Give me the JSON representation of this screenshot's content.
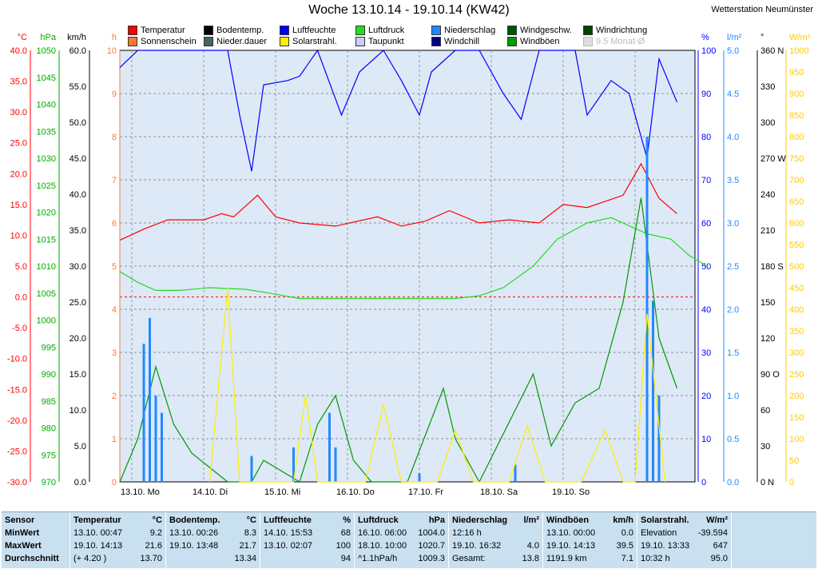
{
  "header": {
    "title": "Woche 13.10.14 - 19.10.14 (KW42)",
    "station": "Wetterstation Neumünster"
  },
  "legend": [
    {
      "label": "Temperatur",
      "color": "#ff0000"
    },
    {
      "label": "Bodentemp.",
      "color": "#000000"
    },
    {
      "label": "Luftfeuchte",
      "color": "#0000ff"
    },
    {
      "label": "Luftdruck",
      "color": "#22dd22"
    },
    {
      "label": "Niederschlag",
      "color": "#2288ff"
    },
    {
      "label": "Windgeschw.",
      "color": "#005500"
    },
    {
      "label": "Windrichtung",
      "color": "#004400"
    },
    {
      "label": "Sonnenschein",
      "color": "#ff7733"
    },
    {
      "label": "Nieder.dauer",
      "color": "#446666"
    },
    {
      "label": "Solarstrahl.",
      "color": "#ffee00"
    },
    {
      "label": "Taupunkt",
      "color": "#ccccff"
    },
    {
      "label": "Windchill",
      "color": "#000088"
    },
    {
      "label": "Windböen",
      "color": "#009900"
    },
    {
      "label": "9.5 Monat-Ø",
      "color": "#dddddd"
    }
  ],
  "axes": {
    "temp": {
      "unit": "°C",
      "color": "#ff0000",
      "ticks": [
        "40.0",
        "35.0",
        "30.0",
        "25.0",
        "20.0",
        "15.0",
        "10.0",
        "5.0",
        "0.0",
        "-5.0",
        "-10.0",
        "-15.0",
        "-20.0",
        "-25.0",
        "-30.0"
      ]
    },
    "pressure": {
      "unit": "hPa",
      "color": "#00aa00",
      "ticks": [
        "1050",
        "1045",
        "1040",
        "1035",
        "1030",
        "1025",
        "1020",
        "1015",
        "1010",
        "1005",
        "1000",
        "995",
        "990",
        "985",
        "980",
        "975",
        "970"
      ]
    },
    "wind": {
      "unit": "km/h",
      "color": "#000000",
      "ticks": [
        "60.0",
        "55.0",
        "50.0",
        "45.0",
        "40.0",
        "35.0",
        "30.0",
        "25.0",
        "20.0",
        "15.0",
        "10.0",
        "5.0",
        "0.0"
      ]
    },
    "hours": {
      "unit": "h",
      "color": "#ff7733",
      "ticks": [
        "10",
        "9",
        "8",
        "7",
        "6",
        "5",
        "4",
        "3",
        "2",
        "1",
        "0"
      ]
    },
    "humidity": {
      "unit": "%",
      "color": "#0000ff",
      "ticks": [
        "100",
        "90",
        "80",
        "70",
        "60",
        "50",
        "40",
        "30",
        "20",
        "10",
        "0"
      ]
    },
    "rain": {
      "unit": "l/m²",
      "color": "#2288ff",
      "ticks": [
        "5.0",
        "4.5",
        "4.0",
        "3.5",
        "3.0",
        "2.5",
        "2.0",
        "1.5",
        "1.0",
        "0.5",
        "0.0"
      ]
    },
    "direction": {
      "unit": "°",
      "color": "#000000",
      "ticks": [
        "360 N",
        "330",
        "300",
        "270 W",
        "240",
        "210",
        "180 S",
        "150",
        "120",
        "90  O",
        "60",
        "30",
        "0 N"
      ]
    },
    "solar": {
      "unit": "W/m²",
      "color": "#ffcc00",
      "ticks": [
        "1000",
        "950",
        "900",
        "850",
        "800",
        "750",
        "700",
        "650",
        "600",
        "550",
        "500",
        "450",
        "400",
        "350",
        "300",
        "250",
        "200",
        "150",
        "100",
        "50",
        "0"
      ]
    }
  },
  "days": [
    "13.10.  Mo",
    "14.10.  Di",
    "15.10.  Mi",
    "16.10.  Do",
    "17.10.  Fr",
    "18.10.  Sa",
    "19.10.  So"
  ],
  "chart_data": {
    "type": "line",
    "x": "hours since 13.10. 00:00 (0-168)",
    "series": [
      {
        "name": "Temperatur",
        "axis": "temp",
        "values": [
          [
            0,
            9.2
          ],
          [
            8,
            11
          ],
          [
            16,
            12.5
          ],
          [
            28,
            12.5
          ],
          [
            34,
            13.5
          ],
          [
            38,
            13
          ],
          [
            46,
            16.5
          ],
          [
            52,
            13
          ],
          [
            60,
            12
          ],
          [
            72,
            11.5
          ],
          [
            86,
            13
          ],
          [
            94,
            11.5
          ],
          [
            102,
            12.3
          ],
          [
            110,
            14
          ],
          [
            120,
            12
          ],
          [
            130,
            12.5
          ],
          [
            140,
            12
          ],
          [
            148,
            15
          ],
          [
            156,
            14.5
          ],
          [
            168,
            16.5
          ],
          [
            174,
            21.6
          ],
          [
            180,
            16
          ],
          [
            186,
            13.5
          ]
        ]
      },
      {
        "name": "Luftfeuchte",
        "axis": "humidity",
        "values": [
          [
            0,
            96
          ],
          [
            6,
            100
          ],
          [
            20,
            100
          ],
          [
            36,
            100
          ],
          [
            40,
            85
          ],
          [
            44,
            72
          ],
          [
            48,
            92
          ],
          [
            56,
            93
          ],
          [
            60,
            94
          ],
          [
            66,
            100
          ],
          [
            74,
            85
          ],
          [
            80,
            95
          ],
          [
            88,
            100
          ],
          [
            94,
            93
          ],
          [
            100,
            85
          ],
          [
            104,
            95
          ],
          [
            112,
            100
          ],
          [
            120,
            100
          ],
          [
            128,
            90
          ],
          [
            134,
            84
          ],
          [
            140,
            100
          ],
          [
            152,
            100
          ],
          [
            156,
            85
          ],
          [
            164,
            93
          ],
          [
            170,
            90
          ],
          [
            176,
            75
          ],
          [
            180,
            98
          ],
          [
            186,
            88
          ]
        ]
      },
      {
        "name": "Luftdruck",
        "axis": "pressure",
        "values": [
          [
            0,
            1009
          ],
          [
            6,
            1007
          ],
          [
            12,
            1005.5
          ],
          [
            20,
            1005.5
          ],
          [
            30,
            1006
          ],
          [
            42,
            1005.7
          ],
          [
            50,
            1005
          ],
          [
            60,
            1004
          ],
          [
            72,
            1004
          ],
          [
            84,
            1004
          ],
          [
            96,
            1004
          ],
          [
            104,
            1004
          ],
          [
            112,
            1004
          ],
          [
            120,
            1004.5
          ],
          [
            128,
            1006
          ],
          [
            138,
            1010
          ],
          [
            146,
            1015
          ],
          [
            156,
            1018
          ],
          [
            164,
            1019
          ],
          [
            176,
            1016
          ],
          [
            184,
            1015
          ],
          [
            190,
            1012
          ],
          [
            196,
            1010
          ]
        ]
      },
      {
        "name": "Windböen",
        "axis": "wind",
        "values": [
          [
            0,
            0
          ],
          [
            6,
            6
          ],
          [
            12,
            16
          ],
          [
            18,
            8
          ],
          [
            24,
            4
          ],
          [
            36,
            0
          ],
          [
            44,
            0
          ],
          [
            48,
            3
          ],
          [
            60,
            0
          ],
          [
            66,
            8
          ],
          [
            72,
            12
          ],
          [
            78,
            3
          ],
          [
            84,
            0
          ],
          [
            96,
            0
          ],
          [
            108,
            13
          ],
          [
            112,
            6
          ],
          [
            120,
            0
          ],
          [
            132,
            10
          ],
          [
            138,
            15
          ],
          [
            144,
            5
          ],
          [
            152,
            11
          ],
          [
            160,
            13
          ],
          [
            168,
            25
          ],
          [
            174,
            39.5
          ],
          [
            180,
            20
          ],
          [
            186,
            13
          ]
        ]
      },
      {
        "name": "Niederschlag",
        "axis": "rain",
        "values": [
          [
            8,
            1.6
          ],
          [
            10,
            1.9
          ],
          [
            12,
            1.0
          ],
          [
            14,
            0.8
          ],
          [
            44,
            0.3
          ],
          [
            58,
            0.4
          ],
          [
            70,
            0.8
          ],
          [
            72,
            0.4
          ],
          [
            100,
            0.1
          ],
          [
            132,
            0.2
          ],
          [
            176,
            4.0
          ],
          [
            178,
            2.1
          ],
          [
            180,
            1.0
          ]
        ]
      },
      {
        "name": "Solarstrahl.",
        "axis": "solar",
        "values": [
          [
            30,
            0
          ],
          [
            36,
            450
          ],
          [
            40,
            0
          ],
          [
            58,
            0
          ],
          [
            62,
            200
          ],
          [
            66,
            0
          ],
          [
            82,
            0
          ],
          [
            88,
            180
          ],
          [
            94,
            0
          ],
          [
            106,
            0
          ],
          [
            112,
            120
          ],
          [
            118,
            0
          ],
          [
            130,
            0
          ],
          [
            136,
            130
          ],
          [
            142,
            0
          ],
          [
            154,
            0
          ],
          [
            162,
            120
          ],
          [
            168,
            0
          ],
          [
            172,
            0
          ],
          [
            176,
            390
          ],
          [
            182,
            0
          ]
        ]
      }
    ],
    "ylim": {
      "temp": [
        -30,
        40
      ],
      "pressure": [
        970,
        1050
      ],
      "wind": [
        0,
        60
      ],
      "hours": [
        0,
        10
      ],
      "humidity": [
        0,
        100
      ],
      "rain": [
        0,
        5
      ],
      "direction": [
        0,
        360
      ],
      "solar": [
        0,
        1000
      ]
    },
    "reference_lines": [
      {
        "axis": "temp",
        "value": 0,
        "color": "#ff0000",
        "style": "dashed"
      }
    ],
    "grid": true
  },
  "stats": {
    "columns": [
      {
        "title": "Temperatur",
        "unit": "°C",
        "rows": [
          [
            "13.10.  00:47",
            "9.2"
          ],
          [
            "19.10.  14:13",
            "21.6"
          ],
          [
            "(+ 4.20 )",
            "13.70"
          ]
        ]
      },
      {
        "title": "Bodentemp.",
        "unit": "°C",
        "rows": [
          [
            "13.10.  00:26",
            "8.3"
          ],
          [
            "19.10.  13:48",
            "21.7"
          ],
          [
            "",
            "13.34"
          ]
        ]
      },
      {
        "title": "Luftfeuchte",
        "unit": "%",
        "rows": [
          [
            "14.10.  15:53",
            "68"
          ],
          [
            "13.10.  02:07",
            "100"
          ],
          [
            "",
            "94"
          ]
        ]
      },
      {
        "title": "Luftdruck",
        "unit": "hPa",
        "rows": [
          [
            "16.10.  06:00",
            "1004.0"
          ],
          [
            "18.10.  10:00",
            "1020.7"
          ],
          [
            "^1.1hPa/h",
            "1009.3"
          ]
        ]
      },
      {
        "title": "Niederschlag",
        "unit": "l/m²",
        "rows": [
          [
            "12:16 h",
            ""
          ],
          [
            "19.10.  16:32",
            "4.0"
          ],
          [
            "Gesamt:",
            "13.8"
          ]
        ]
      },
      {
        "title": "Windböen",
        "unit": "km/h",
        "rows": [
          [
            "13.10.  00:00",
            "0.0"
          ],
          [
            "19.10.  14:13",
            "39.5"
          ],
          [
            "1191.9 km",
            "7.1"
          ]
        ]
      },
      {
        "title": "Solarstrahl.",
        "unit": "W/m²",
        "rows": [
          [
            "Elevation",
            "-39.594"
          ],
          [
            "19.10.  13:33",
            "647"
          ],
          [
            "10:32 h",
            "95.0"
          ]
        ]
      }
    ],
    "labels": [
      "Sensor",
      "MinWert",
      "MaxWert",
      "Durchschnitt"
    ]
  }
}
